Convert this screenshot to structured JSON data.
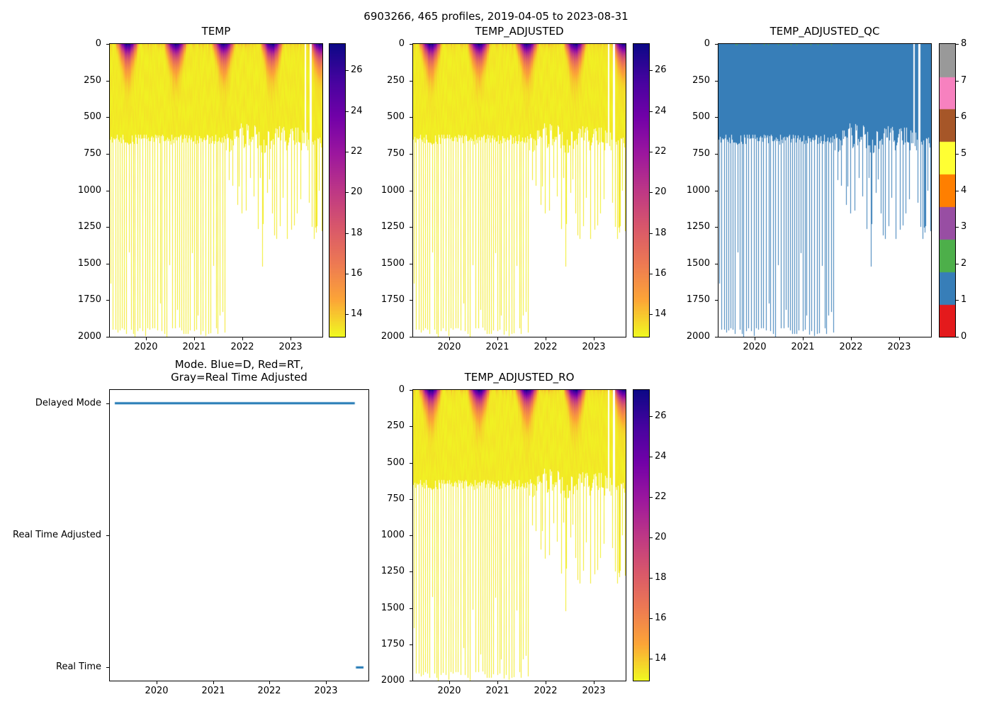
{
  "figure": {
    "title": "6903266, 465 profiles, 2019-04-05 to 2023-08-31"
  },
  "colors": {
    "text": "#000000",
    "axes_spine": "#000000",
    "background": "#ffffff",
    "mode_line_blue": "#1f77b4",
    "qc_flag1_blue": "#377eb8",
    "qc_surface_flag_green": "#4daf4a"
  },
  "time_axis": {
    "start_date": "2019-04-05",
    "end_date": "2023-08-31",
    "start_decimal_year": 2019.258,
    "end_decimal_year": 2023.664,
    "tick_years": [
      2020,
      2021,
      2022,
      2023
    ]
  },
  "depth_axis": {
    "min": 0,
    "max": 2000,
    "ticks": [
      0,
      250,
      500,
      750,
      1000,
      1250,
      1500,
      1750,
      2000
    ]
  },
  "temperature_colorbar": {
    "vmin": 12.9,
    "vmax": 27.3,
    "ticks": [
      14,
      16,
      18,
      20,
      22,
      24,
      26
    ],
    "colormap": "plasma_reversed",
    "plasma_stops": [
      [
        13,
        8,
        135
      ],
      [
        70,
        3,
        159
      ],
      [
        114,
        1,
        168
      ],
      [
        156,
        23,
        158
      ],
      [
        189,
        55,
        134
      ],
      [
        216,
        87,
        107
      ],
      [
        237,
        121,
        83
      ],
      [
        252,
        165,
        55
      ],
      [
        240,
        249,
        33
      ]
    ]
  },
  "qc_colorbar": {
    "ticks": [
      0,
      1,
      2,
      3,
      4,
      5,
      6,
      7,
      8
    ],
    "colors": [
      "#e41a1c",
      "#377eb8",
      "#4daf4a",
      "#984ea3",
      "#ff7f00",
      "#ffff33",
      "#a65628",
      "#f781bf",
      "#999999"
    ]
  },
  "chart_data": [
    {
      "id": "temp",
      "type": "heatmap",
      "title": "TEMP",
      "x": "time",
      "y": "pressure_dbar",
      "values": "temperature_degC",
      "colorbar": "temperature"
    },
    {
      "id": "temp_adjusted",
      "type": "heatmap",
      "title": "TEMP_ADJUSTED",
      "x": "time",
      "y": "pressure_dbar",
      "values": "temperature_degC",
      "colorbar": "temperature"
    },
    {
      "id": "temp_adjusted_qc",
      "type": "heatmap",
      "title": "TEMP_ADJUSTED_QC",
      "x": "time",
      "y": "pressure_dbar",
      "values": "qc_flag",
      "dominant_flag": 1,
      "colorbar": "qc"
    },
    {
      "id": "mode",
      "type": "line",
      "title_line1": "Mode. Blue=D, Red=RT,",
      "title_line2": "Gray=Real Time Adjusted",
      "categories": [
        "Delayed Mode",
        "Real Time Adjusted",
        "Real Time"
      ],
      "x_margin_fraction": 0.02,
      "y_margin_fraction": 0.05,
      "segments": [
        {
          "category": "Delayed Mode",
          "start_decimal_year": 2019.258,
          "end_decimal_year": 2023.51,
          "color": "#1f77b4"
        },
        {
          "category": "Real Time",
          "start_decimal_year": 2023.53,
          "end_decimal_year": 2023.664,
          "color": "#1f77b4"
        }
      ]
    },
    {
      "id": "temp_adjusted_ro",
      "type": "heatmap",
      "title": "TEMP_ADJUSTED_RO",
      "x": "time",
      "y": "pressure_dbar",
      "values": "temperature_degC",
      "colorbar": "temperature"
    }
  ],
  "profile_pattern": {
    "count": 465,
    "seed": 11,
    "regime_change_decimal_year": 2021.67,
    "typical_profile_depth_dbar": 650,
    "deep_profile_depth_dbar": 2000,
    "deep_profile_every_n": 5,
    "post_regime_depth_range_dbar": [
      450,
      1350
    ],
    "surface_temp_summer_degC": 27.0,
    "surface_temp_winter_degC": 14.0,
    "deep_temp_degC": 13.2,
    "data_gaps_decimal_year": [
      [
        2023.295,
        2023.34
      ],
      [
        2023.415,
        2023.455
      ]
    ]
  }
}
